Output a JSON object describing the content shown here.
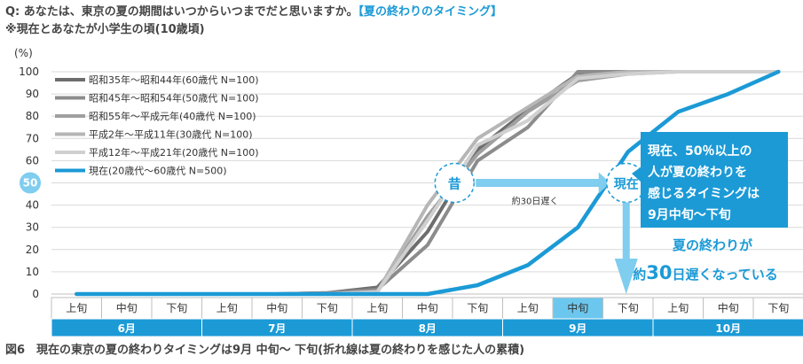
{
  "header": {
    "question": "Q: あなたは、東京の夏の期間はいつからいつまでだと思いますか。",
    "question_tag": "【夏の終わりのタイミング】",
    "note": "※現在とあなたが小学生の頃(10歳頃)"
  },
  "caption": "図6　現在の東京の夏の終わりタイミングは9月 中旬～ 下旬(折れ線は夏の終わりを感じた人の累積)",
  "colors": {
    "accent": "#1b9ad6",
    "light_accent": "#7fcdef",
    "month_bar": "#1b9ad6",
    "highlight_cell": "#6cc7ee",
    "grid": "#d9d9d9"
  },
  "chart_data": {
    "type": "line",
    "ylabel": "(%)",
    "ylim": [
      0,
      100
    ],
    "yticks": [
      0,
      10,
      20,
      30,
      40,
      50,
      60,
      70,
      80,
      90,
      100
    ],
    "highlight_ytick": 50,
    "grid": true,
    "legend_position": "top-left",
    "x": [
      "6月上旬",
      "6月中旬",
      "6月下旬",
      "7月上旬",
      "7月中旬",
      "7月下旬",
      "8月上旬",
      "8月中旬",
      "8月下旬",
      "9月上旬",
      "9月中旬",
      "9月下旬",
      "10月上旬",
      "10月中旬",
      "10月下旬"
    ],
    "x_sub_labels": [
      "上旬",
      "中旬",
      "下旬",
      "上旬",
      "中旬",
      "下旬",
      "上旬",
      "中旬",
      "下旬",
      "上旬",
      "中旬",
      "下旬",
      "上旬",
      "中旬",
      "下旬"
    ],
    "months": [
      "6月",
      "7月",
      "8月",
      "9月",
      "10月"
    ],
    "highlight_sub_index": [
      10
    ],
    "series": [
      {
        "name": "昭和35年～昭和44年(60歳代 N=100)",
        "color": "#6d6d6d",
        "width": 4,
        "values": [
          0,
          0,
          0,
          0,
          0,
          0.5,
          3,
          28,
          65,
          83,
          99,
          100,
          100,
          100,
          100
        ]
      },
      {
        "name": "昭和45年～昭和54年(50歳代 N=100)",
        "color": "#8c8c8c",
        "width": 4,
        "values": [
          0,
          0,
          0,
          0,
          0,
          0.5,
          2,
          22,
          60,
          75,
          100,
          100,
          100,
          100,
          100
        ]
      },
      {
        "name": "昭和55年～平成元年(40歳代 N=100)",
        "color": "#9f9f9f",
        "width": 4,
        "values": [
          0,
          0,
          0,
          0,
          0,
          0,
          1,
          35,
          63,
          82,
          96,
          99,
          100,
          100,
          100
        ]
      },
      {
        "name": "平成2年～平成11年(30歳代 N=100)",
        "color": "#b6b6b6",
        "width": 4,
        "values": [
          0,
          0,
          0,
          0,
          0,
          0,
          1,
          40,
          70,
          84,
          98,
          100,
          100,
          100,
          100
        ]
      },
      {
        "name": "平成12年～平成21年(20歳代 N=100)",
        "color": "#d0d0d0",
        "width": 4,
        "values": [
          0,
          0,
          0,
          0,
          0,
          0,
          1,
          33,
          67,
          78,
          97,
          99,
          100,
          100,
          100
        ]
      },
      {
        "name": "現在(20歳代～60歳代 N=500)",
        "color": "#1b9ad6",
        "width": 4.5,
        "values": [
          0,
          0,
          0,
          0,
          0,
          0,
          0,
          0,
          4,
          13,
          30,
          64,
          82,
          90,
          100
        ]
      }
    ],
    "annotations": {
      "past_label": "昔",
      "now_label": "現在",
      "arrow_text": "約30日遅く",
      "callout_box": [
        "現在、50％以上の",
        "人が夏の終わりを",
        "感じるタイミングは",
        "9月中旬～下旬"
      ],
      "delay_text_line1": "夏の終わりが",
      "delay_text_line2_prefix": "約",
      "delay_text_line2_big": "30",
      "delay_text_line2_suffix": "日遅くなっている"
    }
  }
}
